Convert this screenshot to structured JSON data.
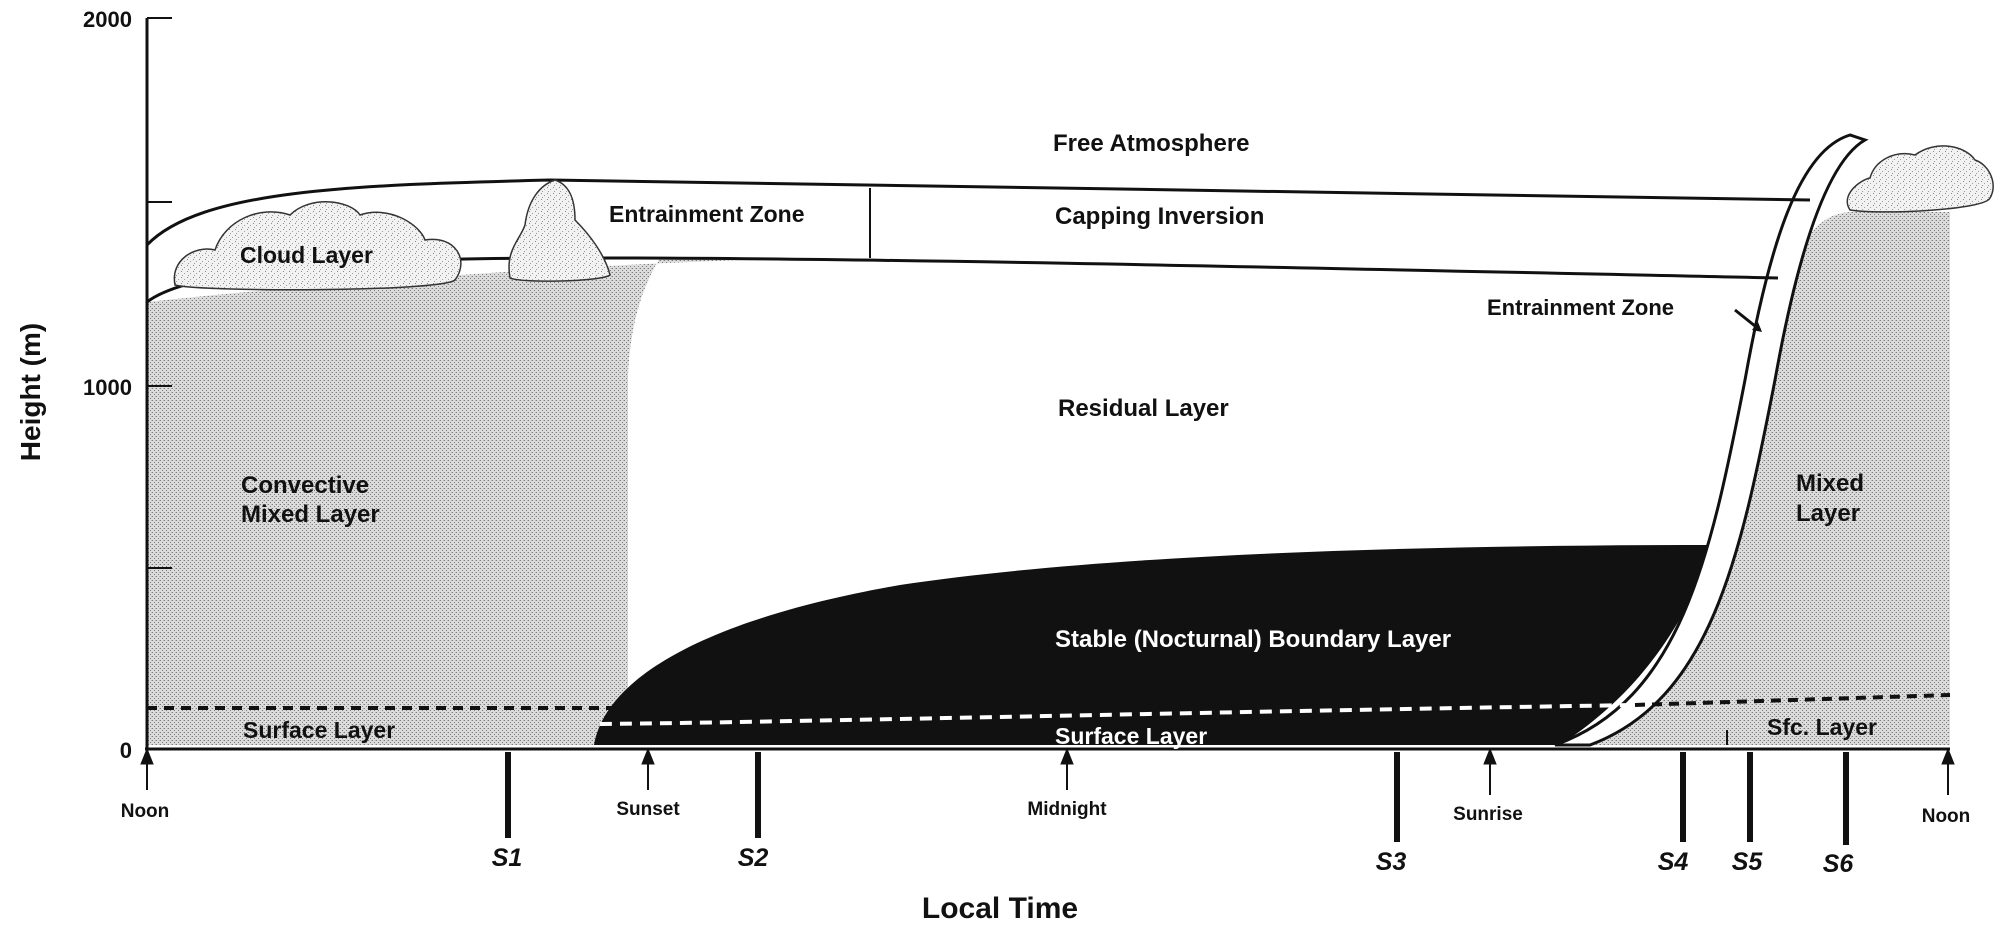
{
  "diagram": {
    "y_axis": {
      "label": "Height  (m)",
      "ticks": [
        "2000",
        "1000",
        "0"
      ]
    },
    "x_axis": {
      "label": "Local Time",
      "time_marks": [
        "Noon",
        "Sunset",
        "Midnight",
        "Sunrise",
        "Noon"
      ],
      "stations": [
        "S1",
        "S2",
        "S3",
        "S4",
        "S5",
        "S6"
      ]
    },
    "regions": {
      "free_atmosphere": "Free  Atmosphere",
      "capping_inversion": "Capping  Inversion",
      "entrainment_zone_top": "Entrainment  Zone",
      "cloud_layer": "Cloud  Layer",
      "entrainment_zone_right": "Entrainment  Zone",
      "residual_layer": "Residual  Layer",
      "convective_mixed_layer": [
        "Convective",
        "Mixed  Layer"
      ],
      "mixed_layer": [
        "Mixed",
        "Layer"
      ],
      "stable_boundary_layer": "Stable  (Nocturnal)  Boundary  Layer",
      "surface_layer_left": "Surface  Layer",
      "surface_layer_night": "Surface    Layer",
      "surface_layer_right": "Sfc.  Layer"
    }
  }
}
